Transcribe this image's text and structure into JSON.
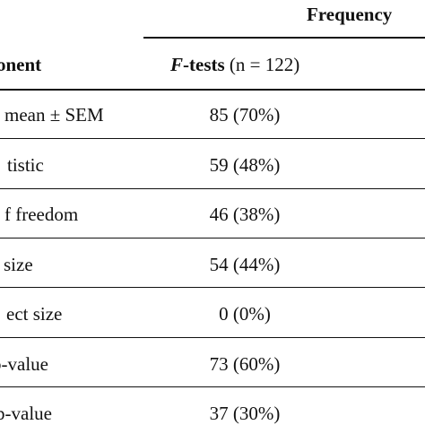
{
  "header": {
    "group_label": "Frequency"
  },
  "columns": {
    "component": "onent",
    "ftests_f": "F",
    "ftests_rest": "-tests",
    "ftests_n": " (n = 122)"
  },
  "rows": [
    {
      "label": "mean ± SEM",
      "value": "85 (70%)"
    },
    {
      "label": "tistic",
      "value": "59 (48%)"
    },
    {
      "label": "f freedom",
      "value": "46 (38%)"
    },
    {
      "label": "size",
      "value": "54 (44%)"
    },
    {
      "label": "ect size",
      "value": "0 (0%)"
    },
    {
      "label": "p-value",
      "value": "73 (60%)"
    },
    {
      "label": "p-value",
      "value": "37 (30%)"
    }
  ]
}
